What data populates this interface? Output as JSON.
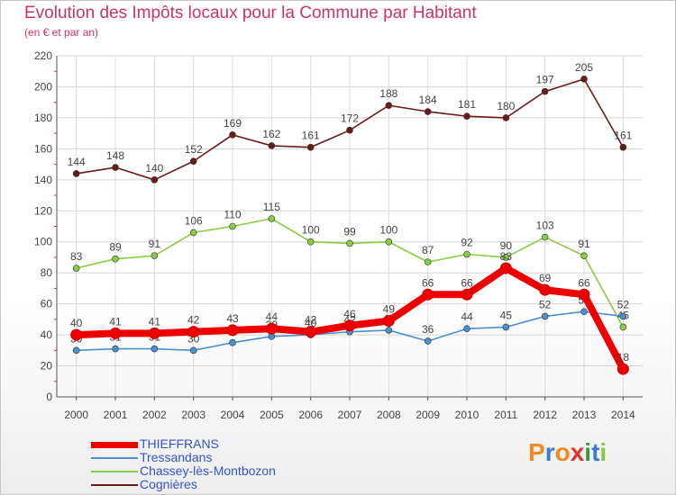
{
  "title": "Evolution des Impôts locaux pour la Commune par Habitant",
  "subtitle": "(en € et par an)",
  "chart_data": {
    "type": "line",
    "x": [
      "2000",
      "2001",
      "2002",
      "2003",
      "2004",
      "2005",
      "2006",
      "2007",
      "2008",
      "2009",
      "2010",
      "2011",
      "2012",
      "2013",
      "2014"
    ],
    "ylim": [
      0,
      220
    ],
    "yticks": [
      0,
      20,
      40,
      60,
      80,
      100,
      120,
      140,
      160,
      180,
      200,
      220
    ],
    "grid": true,
    "legend_position": "bottom-left",
    "series": [
      {
        "name": "Cognières",
        "color": "#6b1a1a",
        "values": [
          144,
          148,
          140,
          152,
          169,
          162,
          161,
          172,
          188,
          184,
          181,
          180,
          197,
          205,
          161
        ],
        "labels": [
          "144",
          "148",
          "140",
          "152",
          "169",
          "162",
          "161",
          "172",
          "188",
          "184",
          "181",
          "180",
          "197",
          "205",
          "161"
        ]
      },
      {
        "name": "Chassey-lès-Montbozon",
        "color": "#88cc44",
        "values": [
          83,
          89,
          91,
          106,
          110,
          115,
          100,
          99,
          100,
          87,
          92,
          90,
          103,
          91,
          45
        ],
        "labels": [
          "83",
          "89",
          "91",
          "106",
          "110",
          "115",
          "100",
          "99",
          "100",
          "87",
          "92",
          "90",
          "103",
          "91",
          "45"
        ]
      },
      {
        "name": "Tressandans",
        "color": "#4a90d0",
        "values": [
          30,
          31,
          31,
          30,
          35,
          39,
          40,
          42,
          43,
          36,
          44,
          45,
          52,
          55,
          52
        ],
        "labels": [
          "30",
          "31",
          "31",
          "30",
          "35",
          "39",
          "40",
          "42",
          "43",
          "36",
          "44",
          "45",
          "52",
          "55",
          "52"
        ]
      },
      {
        "name": "THIEFFRANS",
        "color": "#ee0000",
        "values": [
          40,
          41,
          41,
          42,
          43,
          44,
          42,
          46,
          49,
          66,
          66,
          83,
          69,
          66,
          18
        ],
        "labels": [
          "40",
          "41",
          "41",
          "42",
          "43",
          "44",
          "42",
          "46",
          "49",
          "66",
          "66",
          "83",
          "69",
          "66",
          "18"
        ]
      }
    ]
  },
  "legend": [
    {
      "label": "THIEFFRANS",
      "color": "#ee0000",
      "thickness": 7
    },
    {
      "label": "Tressandans",
      "color": "#4a90d0",
      "thickness": 2
    },
    {
      "label": "Chassey-lès-Montbozon",
      "color": "#88cc44",
      "thickness": 2
    },
    {
      "label": "Cognières",
      "color": "#6b1a1a",
      "thickness": 2
    }
  ],
  "logo": {
    "text": "Proxiti",
    "letters": [
      {
        "ch": "P",
        "color": "#f08a24"
      },
      {
        "ch": "r",
        "color": "#3a7bd5"
      },
      {
        "ch": "o",
        "color": "#f08a24"
      },
      {
        "ch": "x",
        "color": "#e03030"
      },
      {
        "ch": "i",
        "color": "#3a9a3a"
      },
      {
        "ch": "t",
        "color": "#3a7bd5"
      },
      {
        "ch": "i",
        "color": "#8ac440"
      }
    ]
  }
}
